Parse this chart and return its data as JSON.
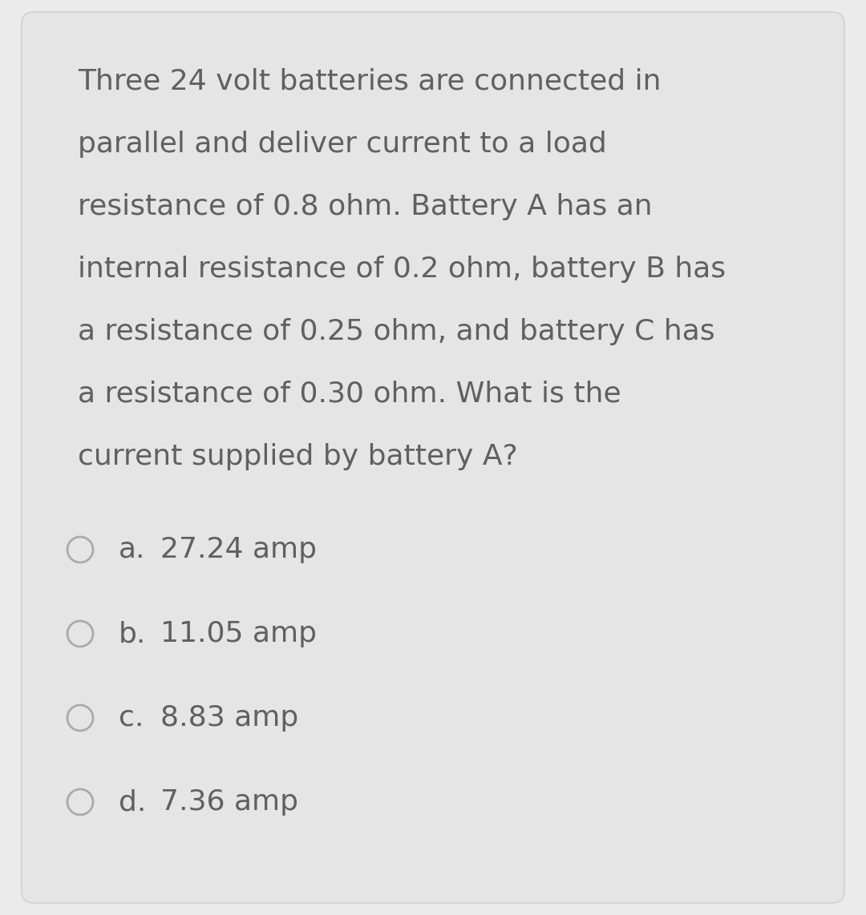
{
  "background_color": "#ebebeb",
  "card_color": "#e5e5e5",
  "text_color": "#606060",
  "question_lines": [
    "Three 24 volt batteries are connected in",
    "parallel and deliver current to a load",
    "resistance of 0.8 ohm. Battery A has an",
    "internal resistance of 0.2 ohm, battery B has",
    "a resistance of 0.25 ohm, and battery C has",
    "a resistance of 0.30 ohm. What is the",
    "current supplied by battery A?"
  ],
  "options": [
    {
      "label": "a.",
      "text": "27.24 amp"
    },
    {
      "label": "b.",
      "text": "11.05 amp"
    },
    {
      "label": "c.",
      "text": "8.83 amp"
    },
    {
      "label": "d.",
      "text": "7.36 amp"
    }
  ],
  "card_edge_color": "#cccccc",
  "circle_edge_color": "#aaaaaa",
  "fig_width": 10.8,
  "fig_height": 11.42,
  "dpi": 100
}
